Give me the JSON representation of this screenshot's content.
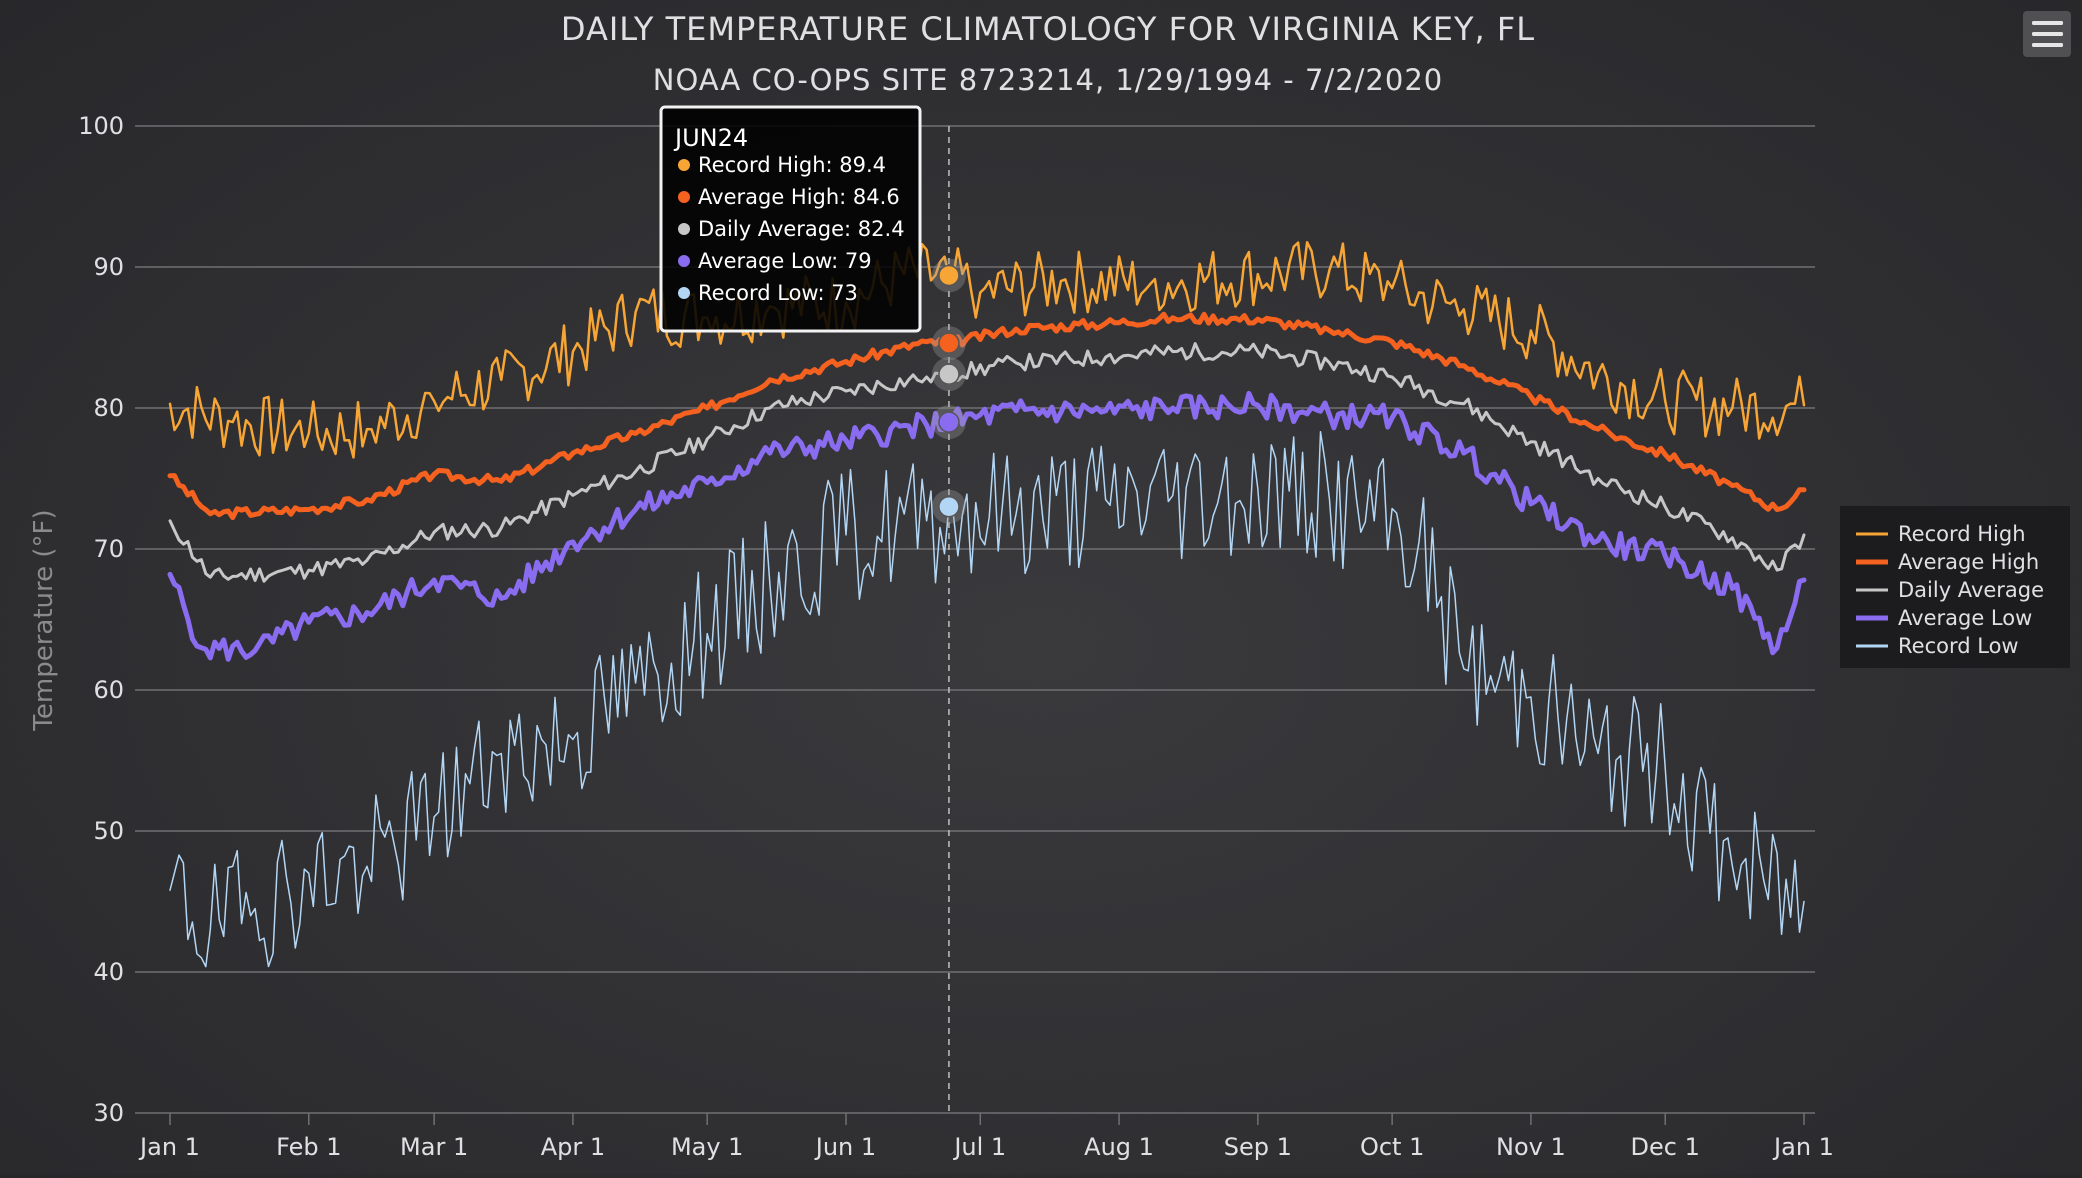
{
  "header": {
    "title": "DAILY TEMPERATURE CLIMATOLOGY FOR VIRGINIA KEY, FL",
    "subtitle": "NOAA CO-OPS SITE 8723214, 1/29/1994 - 7/2/2020",
    "menu_icon": "hamburger-menu-icon"
  },
  "chart_data": {
    "type": "line",
    "title": "DAILY TEMPERATURE CLIMATOLOGY FOR VIRGINIA KEY, FL",
    "subtitle": "NOAA CO-OPS SITE 8723214, 1/29/1994 - 7/2/2020",
    "xlabel": "",
    "ylabel": "Temperature (°F)",
    "ylim": [
      30,
      100
    ],
    "yticks": [
      100,
      90,
      80,
      70,
      60,
      50,
      40,
      30
    ],
    "grid": true,
    "legend_position": "right",
    "x_ticks": [
      {
        "label": "Jan 1",
        "day": 1
      },
      {
        "label": "Feb 1",
        "day": 32
      },
      {
        "label": "Mar 1",
        "day": 60
      },
      {
        "label": "Apr 1",
        "day": 91
      },
      {
        "label": "May 1",
        "day": 121
      },
      {
        "label": "Jun 1",
        "day": 152
      },
      {
        "label": "Jul 1",
        "day": 182
      },
      {
        "label": "Aug 1",
        "day": 213
      },
      {
        "label": "Sep 1",
        "day": 244
      },
      {
        "label": "Oct 1",
        "day": 274
      },
      {
        "label": "Nov 1",
        "day": 305
      },
      {
        "label": "Dec 1",
        "day": 335
      },
      {
        "label": "Jan 1",
        "day": 366
      }
    ],
    "series": [
      {
        "name": "Record High",
        "color": "#f7a535",
        "width": 2.5,
        "anchors": [
          [
            1,
            80.3
          ],
          [
            15,
            79
          ],
          [
            32,
            78.2
          ],
          [
            45,
            78.5
          ],
          [
            60,
            80.5
          ],
          [
            75,
            82
          ],
          [
            91,
            84
          ],
          [
            105,
            86.8
          ],
          [
            121,
            86.4
          ],
          [
            135,
            87.2
          ],
          [
            152,
            87.5
          ],
          [
            165,
            89.5
          ],
          [
            175,
            89.4
          ],
          [
            182,
            88.2
          ],
          [
            200,
            89
          ],
          [
            220,
            88.8
          ],
          [
            244,
            89.5
          ],
          [
            260,
            89.8
          ],
          [
            274,
            88.5
          ],
          [
            290,
            87
          ],
          [
            305,
            85.5
          ],
          [
            320,
            82.5
          ],
          [
            335,
            80.5
          ],
          [
            350,
            80
          ],
          [
            366,
            80.2
          ]
        ],
        "noise": 2.3,
        "seed": 7
      },
      {
        "name": "Average High",
        "color": "#f5611f",
        "width": 5,
        "anchors": [
          [
            1,
            75.2
          ],
          [
            10,
            72.5
          ],
          [
            32,
            72.8
          ],
          [
            45,
            73.5
          ],
          [
            60,
            75.3
          ],
          [
            75,
            74.8
          ],
          [
            91,
            76.8
          ],
          [
            105,
            78.2
          ],
          [
            121,
            80
          ],
          [
            135,
            82
          ],
          [
            152,
            83.3
          ],
          [
            170,
            84.7
          ],
          [
            175,
            84.6
          ],
          [
            190,
            85.6
          ],
          [
            210,
            86
          ],
          [
            225,
            86.4
          ],
          [
            244,
            86.3
          ],
          [
            260,
            85.5
          ],
          [
            274,
            84.7
          ],
          [
            290,
            83
          ],
          [
            305,
            80.8
          ],
          [
            320,
            78.5
          ],
          [
            335,
            76.7
          ],
          [
            350,
            74.5
          ],
          [
            360,
            72.8
          ],
          [
            366,
            74.2
          ]
        ],
        "noise": 0.35,
        "seed": 3
      },
      {
        "name": "Daily Average",
        "color": "#c7c7c7",
        "width": 3,
        "anchors": [
          [
            1,
            72
          ],
          [
            10,
            68
          ],
          [
            32,
            68.5
          ],
          [
            45,
            69.2
          ],
          [
            60,
            71.2
          ],
          [
            75,
            71.5
          ],
          [
            91,
            73.8
          ],
          [
            105,
            75.5
          ],
          [
            121,
            77.8
          ],
          [
            135,
            80
          ],
          [
            152,
            81.2
          ],
          [
            170,
            82.2
          ],
          [
            175,
            82.4
          ],
          [
            190,
            83.2
          ],
          [
            210,
            83.6
          ],
          [
            225,
            84
          ],
          [
            244,
            84
          ],
          [
            260,
            83.2
          ],
          [
            274,
            82.2
          ],
          [
            290,
            80.3
          ],
          [
            305,
            77.6
          ],
          [
            320,
            75
          ],
          [
            335,
            73
          ],
          [
            350,
            70.8
          ],
          [
            360,
            68.5
          ],
          [
            366,
            71
          ]
        ],
        "noise": 0.6,
        "seed": 11
      },
      {
        "name": "Average Low",
        "color": "#8a6cf0",
        "width": 5,
        "anchors": [
          [
            1,
            68.2
          ],
          [
            8,
            63
          ],
          [
            20,
            62.8
          ],
          [
            32,
            64.8
          ],
          [
            45,
            65.5
          ],
          [
            60,
            67.8
          ],
          [
            75,
            66.5
          ],
          [
            91,
            70.5
          ],
          [
            105,
            72.8
          ],
          [
            121,
            74.7
          ],
          [
            135,
            76.8
          ],
          [
            152,
            77.7
          ],
          [
            170,
            78.8
          ],
          [
            175,
            79
          ],
          [
            190,
            79.8
          ],
          [
            210,
            79.8
          ],
          [
            225,
            80
          ],
          [
            244,
            80.2
          ],
          [
            260,
            79.5
          ],
          [
            274,
            79.3
          ],
          [
            290,
            76.8
          ],
          [
            305,
            73.2
          ],
          [
            320,
            70.6
          ],
          [
            335,
            69.5
          ],
          [
            350,
            67.2
          ],
          [
            360,
            63
          ],
          [
            366,
            67.8
          ]
        ],
        "noise": 0.9,
        "seed": 5
      },
      {
        "name": "Record Low",
        "color": "#b3d6f5",
        "width": 1.5,
        "anchors": [
          [
            1,
            45.8
          ],
          [
            10,
            43
          ],
          [
            20,
            44.5
          ],
          [
            32,
            47
          ],
          [
            45,
            47.5
          ],
          [
            60,
            51
          ],
          [
            75,
            55.5
          ],
          [
            91,
            56.5
          ],
          [
            105,
            60.5
          ],
          [
            121,
            64
          ],
          [
            135,
            67.5
          ],
          [
            152,
            71
          ],
          [
            170,
            72
          ],
          [
            175,
            73
          ],
          [
            190,
            72.5
          ],
          [
            210,
            73.5
          ],
          [
            225,
            73.8
          ],
          [
            244,
            74.3
          ],
          [
            260,
            73.5
          ],
          [
            270,
            72
          ],
          [
            280,
            70.5
          ],
          [
            290,
            61.5
          ],
          [
            305,
            59.5
          ],
          [
            320,
            55.5
          ],
          [
            335,
            54.5
          ],
          [
            350,
            47.5
          ],
          [
            366,
            45
          ]
        ],
        "noise": 4.8,
        "seed": 19
      }
    ],
    "tooltip": {
      "day": 175,
      "title": "JUN24",
      "rows": [
        {
          "label": "Record High: 89.4",
          "color": "#f7a535",
          "value": 89.4
        },
        {
          "label": "Average High: 84.6",
          "color": "#f5611f",
          "value": 84.6
        },
        {
          "label": "Daily Average: 82.4",
          "color": "#c7c7c7",
          "value": 82.4
        },
        {
          "label": "Average Low: 79",
          "color": "#8a6cf0",
          "value": 79
        },
        {
          "label": "Record Low: 73",
          "color": "#b3d6f5",
          "value": 73
        }
      ]
    }
  }
}
